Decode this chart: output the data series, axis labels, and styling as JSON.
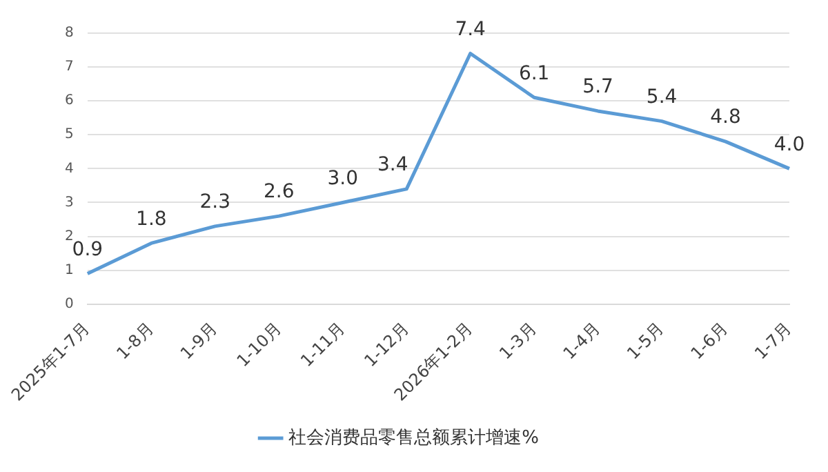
{
  "chart_data": {
    "type": "line",
    "categories": [
      "2025年1-7月",
      "1-8月",
      "1-9月",
      "1-10月",
      "1-11月",
      "1-12月",
      "2026年1-2月",
      "1-3月",
      "1-4月",
      "1-5月",
      "1-6月",
      "1-7月"
    ],
    "series": [
      {
        "name": "社会消费品零售总额累计增速%",
        "color": "#5b9bd5",
        "values": [
          0.9,
          1.8,
          2.3,
          2.6,
          3.0,
          3.4,
          7.4,
          6.1,
          5.7,
          5.4,
          4.8,
          4.0
        ],
        "value_labels": [
          "0.9",
          "1.8",
          "2.3",
          "2.6",
          "3.0",
          "3.4",
          "7.4",
          "6.1",
          "5.7",
          "5.4",
          "4.8",
          "4.0"
        ]
      }
    ],
    "ylim": [
      0,
      8
    ],
    "yticks": [
      0,
      1,
      2,
      3,
      4,
      5,
      6,
      7,
      8
    ],
    "grid": "y",
    "legend": "bottom",
    "marker": "none",
    "line_style": "solid"
  }
}
